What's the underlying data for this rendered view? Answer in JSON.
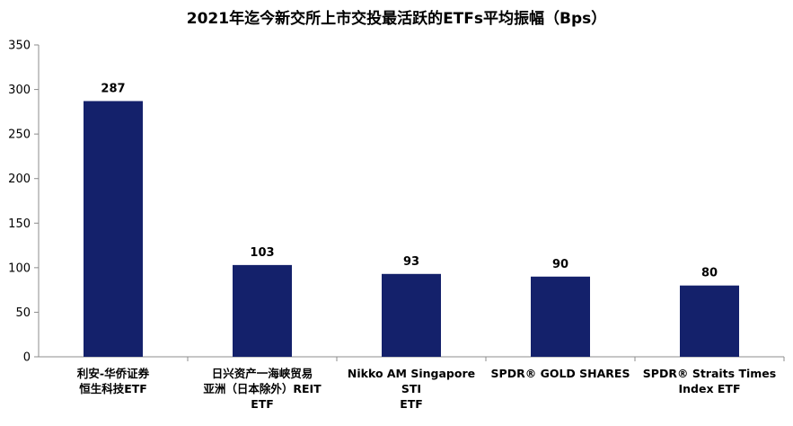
{
  "chart_data": {
    "type": "bar",
    "title": "2021年迄今新交所上市交投最活跃的ETFs平均振幅（Bps）",
    "categories": [
      "利安-华侨证券\n恒生科技ETF",
      "日兴资产一海峡贸易\n亚洲（日本除外）REIT\nETF",
      "Nikko AM Singapore STI\nETF",
      "SPDR® GOLD SHARES",
      "SPDR® Straits Times\nIndex ETF"
    ],
    "values": [
      287,
      103,
      93,
      90,
      80
    ],
    "ylim": [
      0,
      350
    ],
    "yticks": [
      0,
      50,
      100,
      150,
      200,
      250,
      300,
      350
    ],
    "bar_color": "#14216b",
    "grid": false,
    "legend": "none"
  }
}
